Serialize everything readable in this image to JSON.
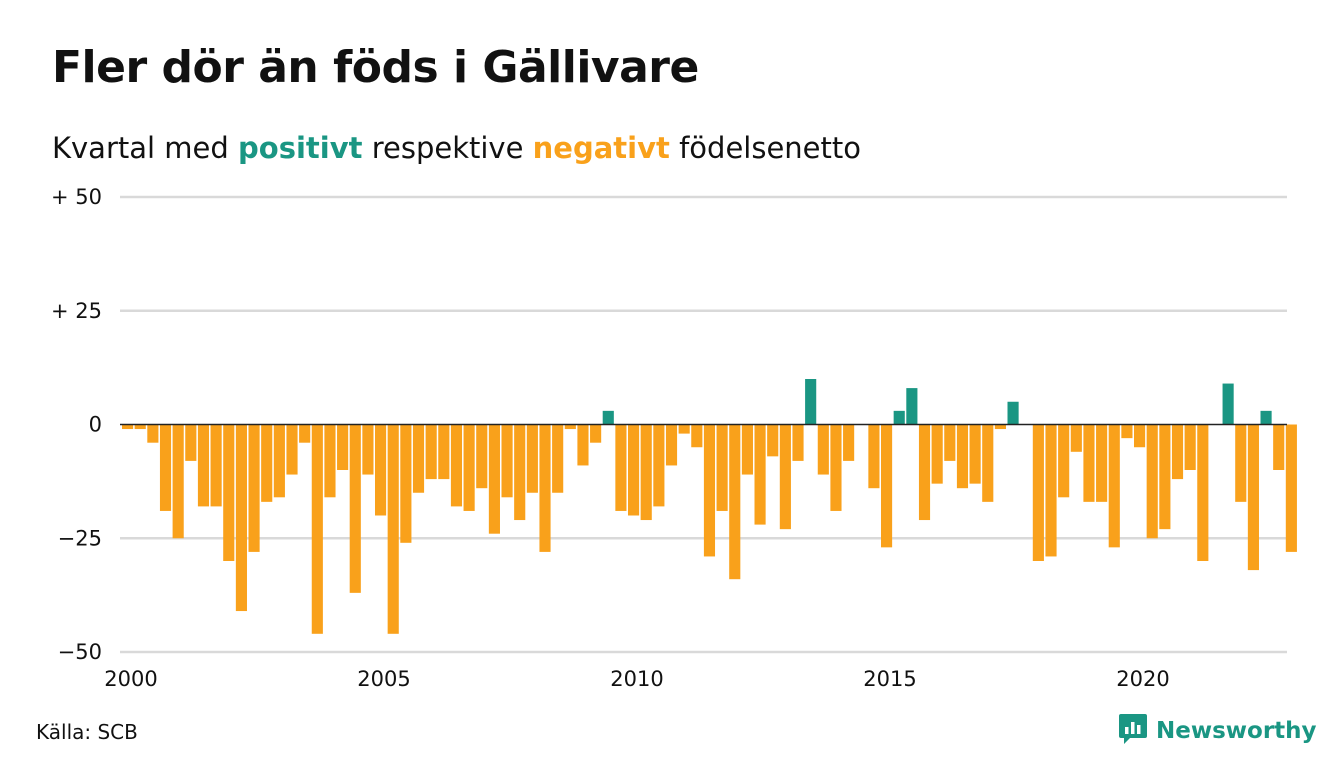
{
  "title": "Fler dör än föds i Gällivare",
  "subtitle": {
    "before": "Kvartal med",
    "positive": "positivt",
    "middle": "respektive",
    "negative": "negativt",
    "after": "födelsenetto"
  },
  "source": "Källa: SCB",
  "brand": {
    "name": "Newsworthy",
    "icon": "newsworthy-chart-bubble-icon"
  },
  "colors": {
    "positive": "#1a9683",
    "negative": "#f9a11b",
    "grid": "#d9d9d9",
    "zero_line": "#222222",
    "text": "#111111"
  },
  "chart_data": {
    "type": "bar",
    "title": "Fler dör än föds i Gällivare",
    "xlabel": "",
    "ylabel": "",
    "x_start": 2000,
    "x_step": 0.25,
    "xlim": [
      2000,
      2023
    ],
    "ylim": [
      -50,
      50
    ],
    "xticks": [
      {
        "value": 2000,
        "label": "2000"
      },
      {
        "value": 2005,
        "label": "2005"
      },
      {
        "value": 2010,
        "label": "2010"
      },
      {
        "value": 2015,
        "label": "2015"
      },
      {
        "value": 2020,
        "label": "2020"
      }
    ],
    "yticks": [
      {
        "value": 50,
        "label": "+ 50"
      },
      {
        "value": 25,
        "label": "+ 25"
      },
      {
        "value": 0,
        "label": "0"
      },
      {
        "value": -25,
        "label": "−25"
      },
      {
        "value": -50,
        "label": "−50"
      }
    ],
    "grid": true,
    "values": [
      -1,
      -1,
      -4,
      -19,
      -25,
      -8,
      -18,
      -18,
      -30,
      -41,
      -28,
      -17,
      -16,
      -11,
      -4,
      -46,
      -16,
      -10,
      -37,
      -11,
      -20,
      -46,
      -26,
      -15,
      -12,
      -12,
      -18,
      -19,
      -14,
      -24,
      -16,
      -21,
      -15,
      -28,
      -15,
      -1,
      -9,
      -4,
      3,
      -19,
      -20,
      -21,
      -18,
      -9,
      -2,
      -5,
      -29,
      -19,
      -34,
      -11,
      -22,
      -7,
      -23,
      -8,
      10,
      -11,
      -19,
      -8,
      0,
      -14,
      -27,
      3,
      8,
      -21,
      -13,
      -8,
      -14,
      -13,
      -17,
      -1,
      5,
      0,
      -30,
      -29,
      -16,
      -6,
      -17,
      -17,
      -27,
      -3,
      -5,
      -25,
      -23,
      -12,
      -10,
      -30,
      0,
      9,
      -17,
      -32,
      3,
      -10,
      -28
    ]
  }
}
